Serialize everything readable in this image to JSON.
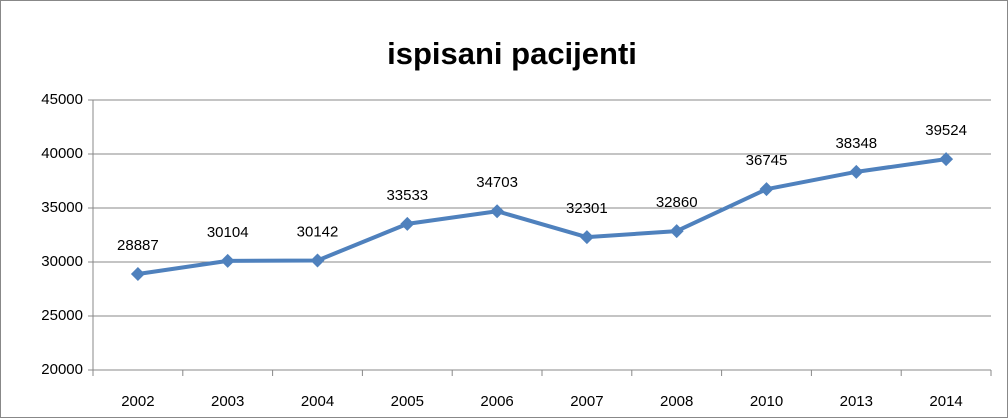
{
  "chart_data": {
    "type": "line",
    "title": "ispisani pacijenti",
    "categories": [
      "2002",
      "2003",
      "2004",
      "2005",
      "2006",
      "2007",
      "2008",
      "2010",
      "2013",
      "2014"
    ],
    "series": [
      {
        "color": "#4f81bd",
        "values": [
          28887,
          30104,
          30142,
          33533,
          34703,
          32301,
          32860,
          36745,
          38348,
          39524
        ]
      }
    ],
    "ylim": [
      20000,
      45000
    ],
    "yticks": [
      20000,
      25000,
      30000,
      35000,
      40000,
      45000
    ],
    "grid": true
  }
}
